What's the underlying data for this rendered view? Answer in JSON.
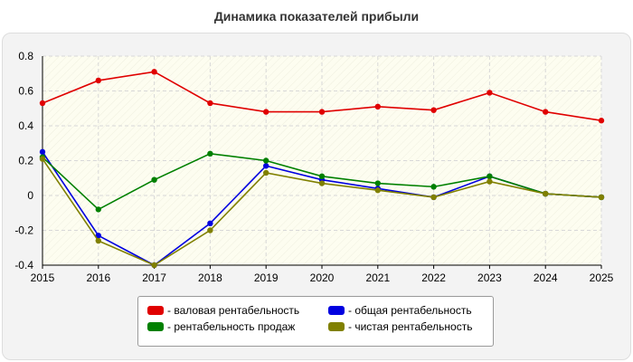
{
  "chart_data": {
    "type": "line",
    "title": "Динамика показателей прибыли",
    "xlabel": "",
    "ylabel": "",
    "x": [
      "2015",
      "2016",
      "2017",
      "2018",
      "2019",
      "2020",
      "2021",
      "2022",
      "2023",
      "2024",
      "2025"
    ],
    "ylim": [
      -0.4,
      0.8
    ],
    "yticks": [
      "0.8",
      "0.6",
      "0.4",
      "0.2",
      "0",
      "-0.2",
      "-0.4"
    ],
    "grid": true,
    "legend_position": "bottom",
    "series": [
      {
        "name": "валовая рентабельность",
        "color": "#e00000",
        "values": [
          0.53,
          0.66,
          0.71,
          0.53,
          0.48,
          0.48,
          0.51,
          0.49,
          0.59,
          0.48,
          0.43
        ]
      },
      {
        "name": "общая рентабельность",
        "color": "#0000e0",
        "values": [
          0.25,
          -0.23,
          -0.4,
          -0.16,
          0.17,
          0.09,
          0.04,
          -0.01,
          0.11,
          0.01,
          -0.01
        ]
      },
      {
        "name": "рентабельность продаж",
        "color": "#008000",
        "values": [
          0.22,
          -0.08,
          0.09,
          0.24,
          0.2,
          0.11,
          0.07,
          0.05,
          0.11,
          0.01,
          -0.01
        ]
      },
      {
        "name": "чистая рентабельность",
        "color": "#808000",
        "values": [
          0.21,
          -0.26,
          -0.4,
          -0.2,
          0.13,
          0.07,
          0.03,
          -0.01,
          0.08,
          0.01,
          -0.01
        ]
      }
    ]
  },
  "legend": {
    "items": [
      {
        "label": "- валовая рентабельность",
        "color": "#e00000"
      },
      {
        "label": "- общая рентабельность",
        "color": "#0000e0"
      },
      {
        "label": "- рентабельность продаж",
        "color": "#008000"
      },
      {
        "label": "- чистая рентабельность",
        "color": "#808000"
      }
    ]
  }
}
